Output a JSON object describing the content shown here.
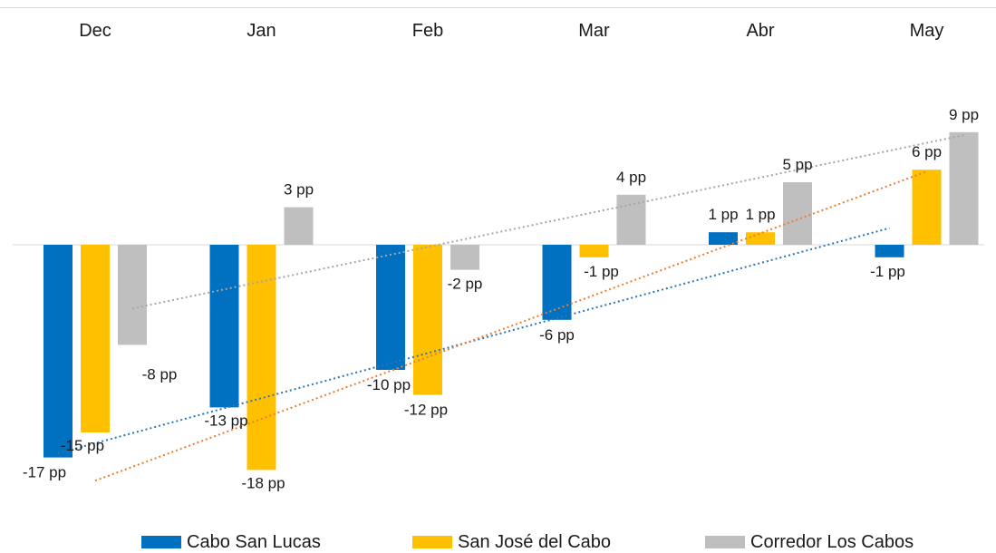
{
  "chart_data": {
    "type": "bar",
    "categories": [
      "Dec",
      "Jan",
      "Feb",
      "Mar",
      "Abr",
      "May"
    ],
    "unit_suffix": " pp",
    "series": [
      {
        "name": "Cabo San Lucas",
        "color": "#0070C0",
        "trend_color": "#2e75b6",
        "values": [
          -17,
          -13,
          -10,
          -6,
          1,
          -1
        ]
      },
      {
        "name": "San José del Cabo",
        "color": "#FFC000",
        "trend_color": "#ed7d31",
        "values": [
          -15,
          -18,
          -12,
          -1,
          1,
          6
        ]
      },
      {
        "name": "Corredor Los Cabos",
        "color": "#BFBFBF",
        "trend_color": "#a6a6a6",
        "values": [
          -8,
          3,
          -2,
          4,
          5,
          9
        ]
      }
    ],
    "trendlines": "linear, dotted, one per series",
    "legend_position": "bottom",
    "category_labels_position": "top",
    "grid": false
  }
}
